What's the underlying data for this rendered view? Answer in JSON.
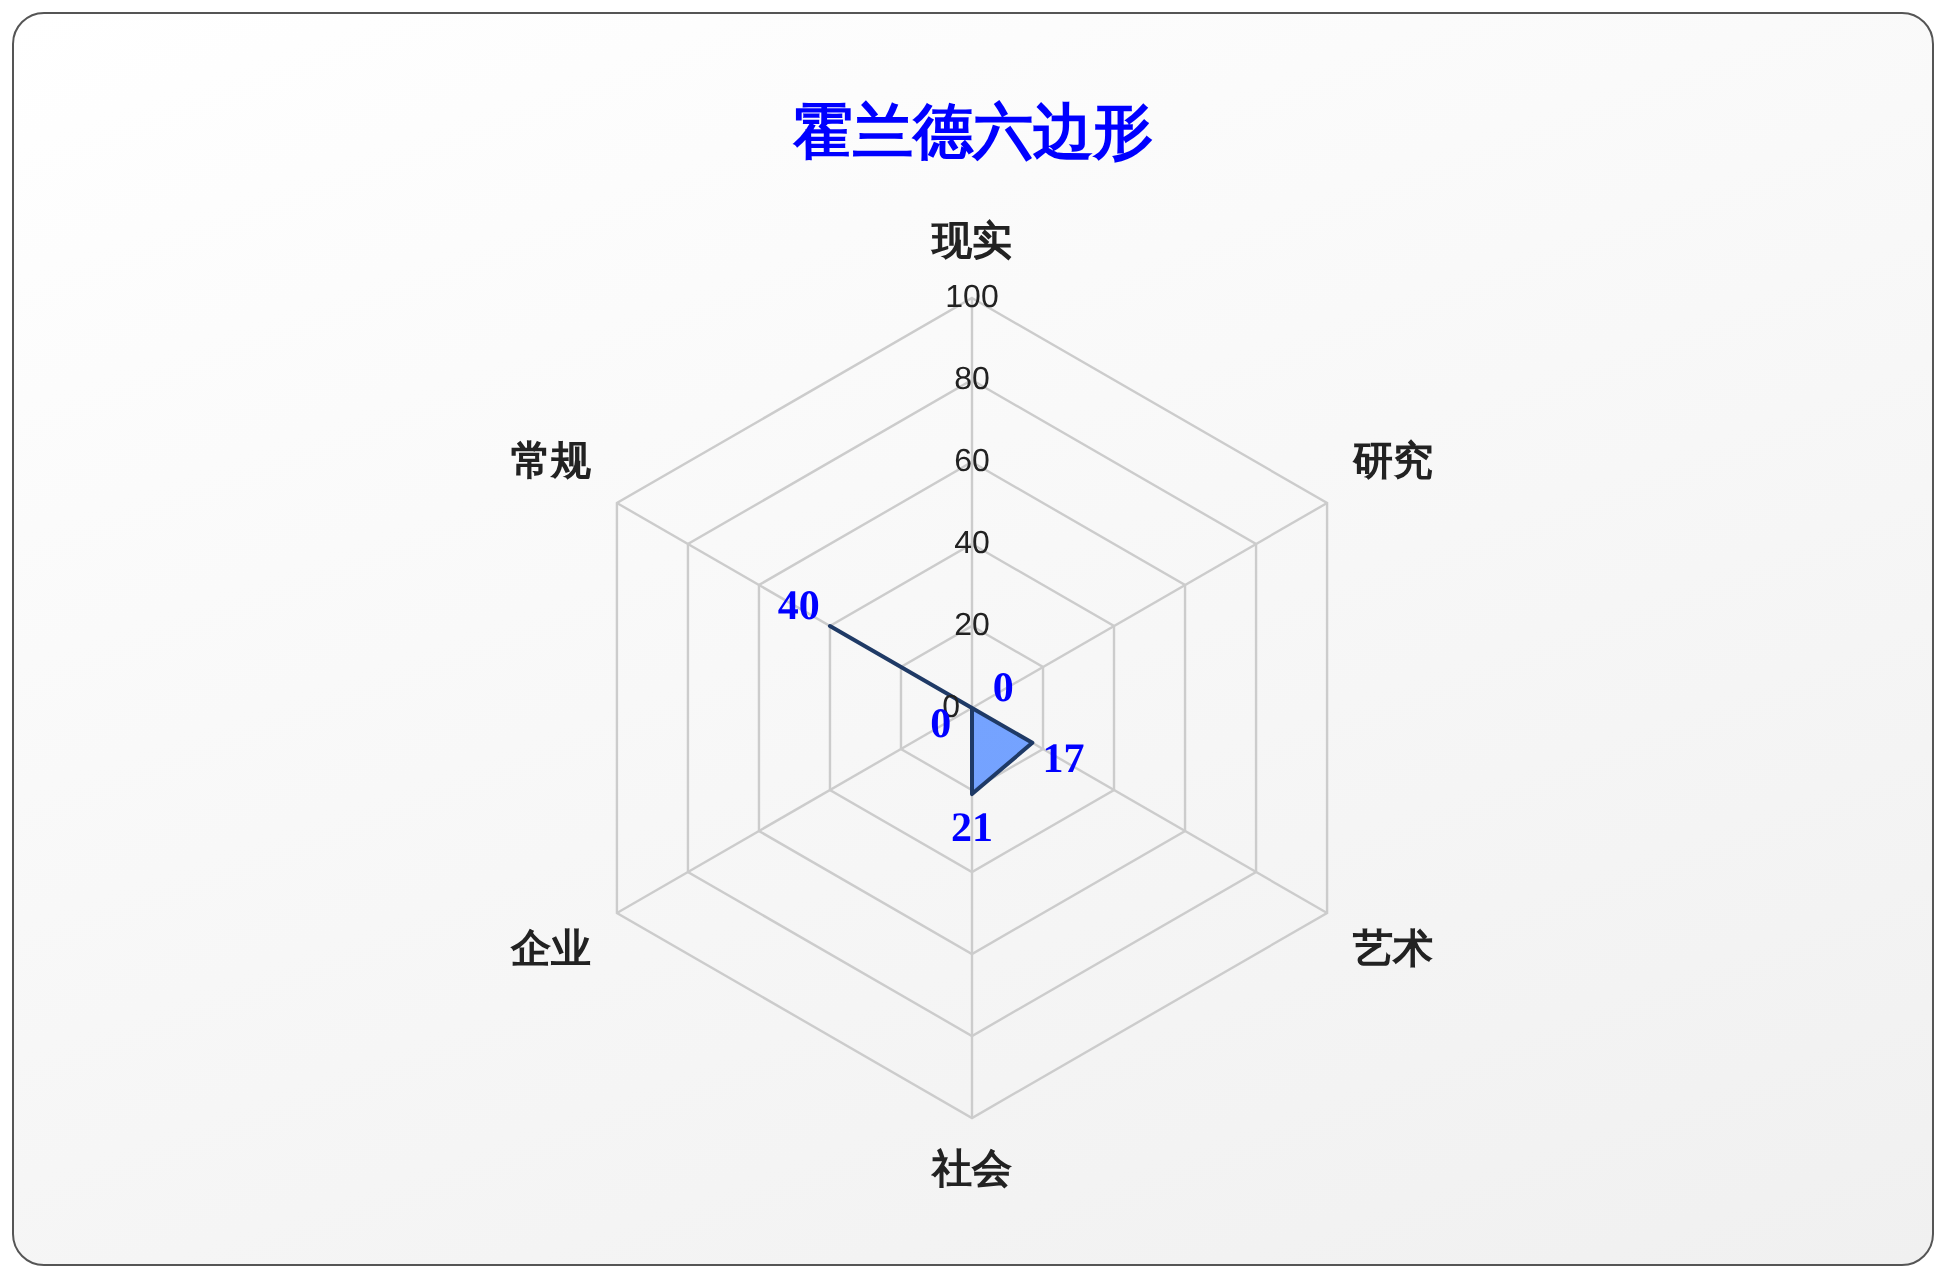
{
  "chart_data": {
    "type": "radar",
    "title": "霍兰德六边形",
    "categories": [
      "现实",
      "研究",
      "艺术",
      "社会",
      "企业",
      "常规"
    ],
    "series": [
      {
        "color": "#6699ff",
        "values": [
          0,
          0,
          17,
          21,
          0,
          40
        ],
        "value_labels": [
          null,
          "0",
          "17",
          "21",
          "0",
          "40"
        ]
      }
    ],
    "ylim": [
      0,
      100
    ],
    "yticks": [
      0,
      20,
      40,
      60,
      80,
      100
    ],
    "grid": true,
    "legend": false,
    "marker": "none"
  }
}
